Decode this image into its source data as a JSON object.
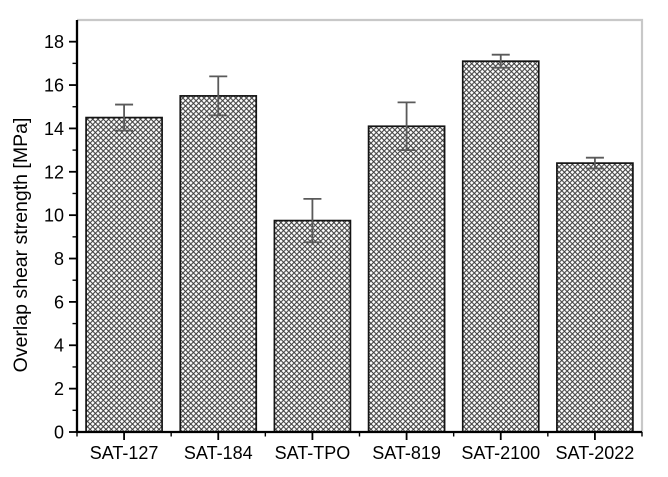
{
  "chart_data": {
    "type": "bar",
    "title": "",
    "xlabel": "",
    "ylabel": "Overlap shear strength [MPa]",
    "categories": [
      "SAT-127",
      "SAT-184",
      "SAT-TPO",
      "SAT-819",
      "SAT-2100",
      "SAT-2022"
    ],
    "values": [
      14.5,
      15.5,
      9.75,
      14.1,
      17.1,
      12.4
    ],
    "errors": [
      0.6,
      0.9,
      1.0,
      1.1,
      0.3,
      0.25
    ],
    "ylim": [
      0,
      19
    ],
    "y_major_ticks": [
      0,
      2,
      4,
      6,
      8,
      10,
      12,
      14,
      16,
      18
    ],
    "y_minor_ticks": [
      1,
      3,
      5,
      7,
      9,
      11,
      13,
      15,
      17
    ],
    "grid": false,
    "legend": "none",
    "bar_fill": "crosshatch",
    "error_bars": "both-ends-capped",
    "colors": {
      "background": "#ffffff",
      "axis": "#000000",
      "frame": "#c8c8c8",
      "hatch": "#3c3c3c",
      "bar_outline": "#141414",
      "error_bar": "#5a5a5a",
      "text": "#000000"
    }
  }
}
